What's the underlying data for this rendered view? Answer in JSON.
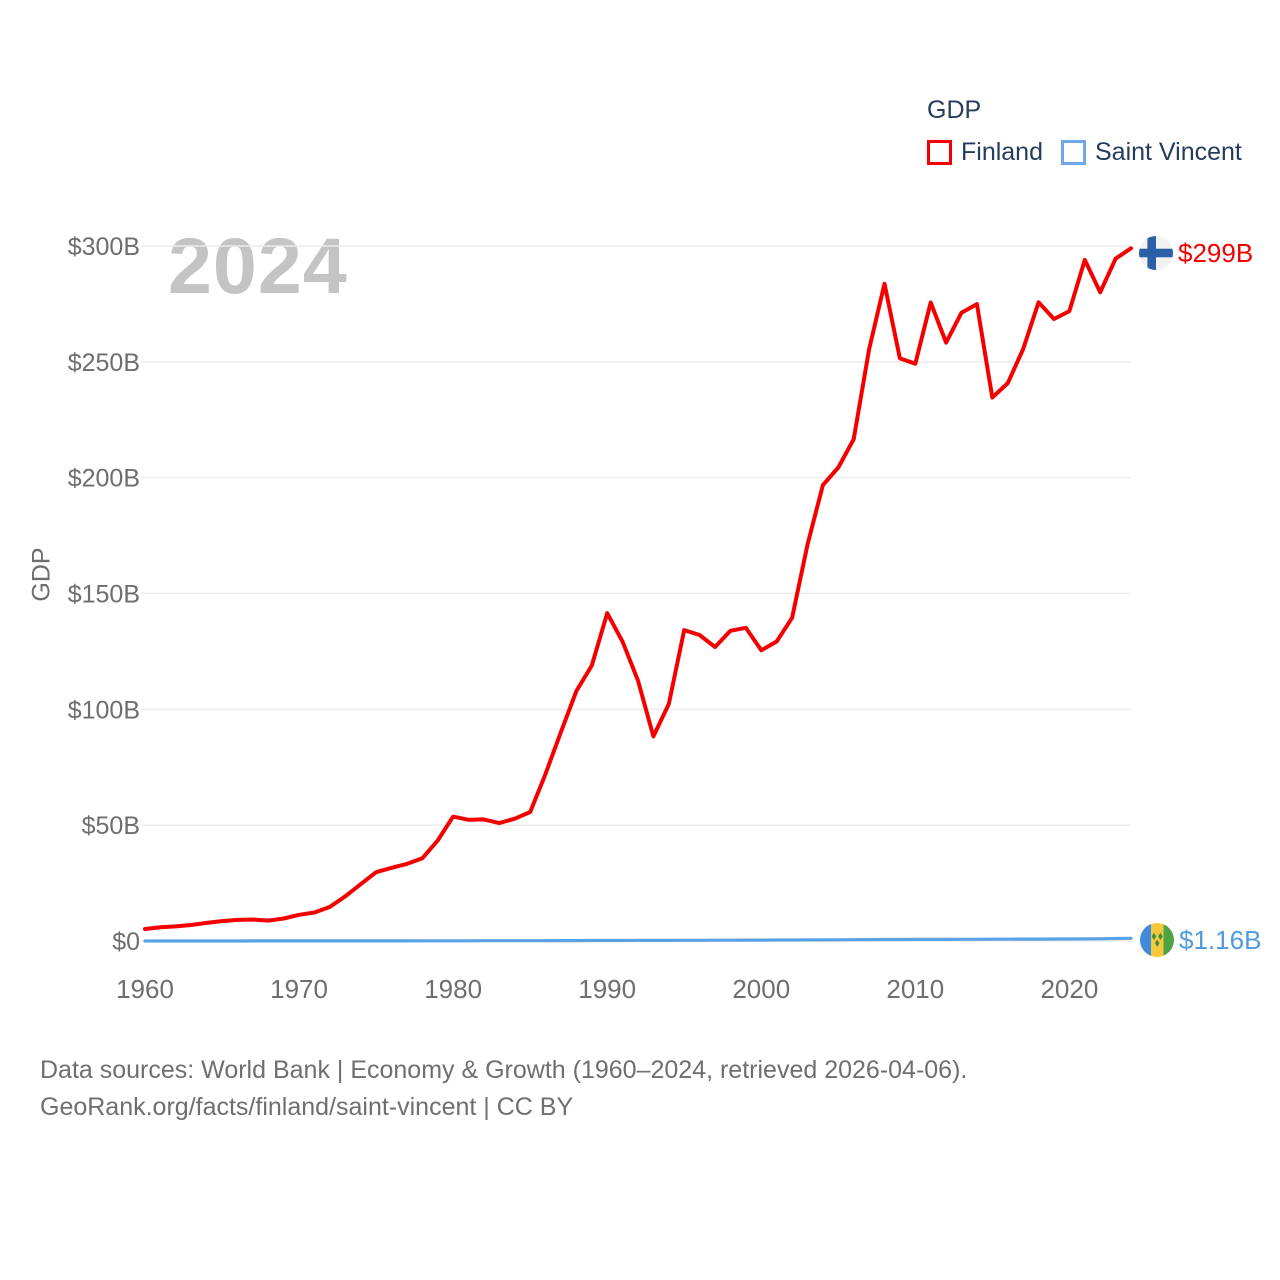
{
  "legend": {
    "title": "GDP",
    "items": [
      {
        "label": "Finland",
        "color": "#f50000"
      },
      {
        "label": "Saint Vincent",
        "color": "#6fa8e8"
      }
    ]
  },
  "watermark": {
    "text": "2024"
  },
  "y_axis": {
    "title": "GDP",
    "tick_labels": [
      "$0",
      "$50B",
      "$100B",
      "$150B",
      "$200B",
      "$250B",
      "$300B"
    ]
  },
  "x_axis": {
    "tick_labels": [
      "1960",
      "1970",
      "1980",
      "1990",
      "2000",
      "2010",
      "2020"
    ]
  },
  "end_labels": {
    "finland": {
      "value_text": "$299B",
      "color": "#f50000",
      "flag": "finland-flag"
    },
    "saint_vincent": {
      "value_text": "$1.16B",
      "color": "#4f9ce0",
      "flag": "saint-vincent-flag"
    }
  },
  "footer": {
    "line1": "Data sources: World Bank | Economy & Growth (1960–2024, retrieved 2026-04-06).",
    "line2": "GeoRank.org/facts/finland/saint-vincent | CC BY"
  },
  "chart_data": {
    "type": "line",
    "title": "GDP",
    "ylabel": "GDP",
    "unit": "USD billions",
    "legend_position": "top-right",
    "grid": "horizontal",
    "xlim": [
      1960,
      2024
    ],
    "ylim": [
      0,
      300
    ],
    "x_tick_values": [
      1960,
      1970,
      1980,
      1990,
      2000,
      2010,
      2020
    ],
    "y_tick_values": [
      0,
      50,
      100,
      150,
      200,
      250,
      300
    ],
    "x": [
      1960,
      1961,
      1962,
      1963,
      1964,
      1965,
      1966,
      1967,
      1968,
      1969,
      1970,
      1971,
      1972,
      1973,
      1974,
      1975,
      1976,
      1977,
      1978,
      1979,
      1980,
      1981,
      1982,
      1983,
      1984,
      1985,
      1986,
      1987,
      1988,
      1989,
      1990,
      1991,
      1992,
      1993,
      1994,
      1995,
      1996,
      1997,
      1998,
      1999,
      2000,
      2001,
      2002,
      2003,
      2004,
      2005,
      2006,
      2007,
      2008,
      2009,
      2010,
      2011,
      2012,
      2013,
      2014,
      2015,
      2016,
      2017,
      2018,
      2019,
      2020,
      2021,
      2022,
      2023,
      2024
    ],
    "series": [
      {
        "name": "Finland",
        "color": "#f50000",
        "values": [
          5.2,
          5.9,
          6.3,
          6.9,
          7.8,
          8.6,
          9.1,
          9.3,
          8.8,
          9.7,
          11.3,
          12.3,
          14.7,
          19.3,
          24.5,
          29.7,
          31.6,
          33.3,
          35.7,
          43.4,
          53.7,
          52.3,
          52.5,
          50.9,
          52.8,
          55.7,
          72.2,
          90.3,
          107.9,
          118.9,
          141.5,
          129.2,
          112.4,
          88.3,
          102.3,
          134.2,
          132.1,
          126.9,
          133.9,
          135.2,
          125.5,
          129.3,
          139.5,
          171.1,
          196.8,
          204.4,
          216.6,
          255.4,
          283.7,
          251.5,
          249.2,
          275.6,
          258.3,
          271.2,
          274.9,
          234.6,
          240.8,
          255.6,
          275.7,
          268.5,
          271.9,
          294.0,
          280.0,
          294.5,
          299.0
        ]
      },
      {
        "name": "Saint Vincent",
        "color": "#5aa2e6",
        "values": [
          0.01,
          0.01,
          0.02,
          0.02,
          0.02,
          0.02,
          0.02,
          0.03,
          0.03,
          0.03,
          0.03,
          0.03,
          0.04,
          0.04,
          0.05,
          0.05,
          0.05,
          0.06,
          0.07,
          0.08,
          0.09,
          0.1,
          0.11,
          0.12,
          0.13,
          0.14,
          0.15,
          0.17,
          0.19,
          0.2,
          0.22,
          0.23,
          0.25,
          0.26,
          0.28,
          0.29,
          0.31,
          0.33,
          0.35,
          0.37,
          0.4,
          0.42,
          0.44,
          0.46,
          0.49,
          0.52,
          0.57,
          0.62,
          0.66,
          0.65,
          0.68,
          0.68,
          0.69,
          0.72,
          0.73,
          0.76,
          0.79,
          0.81,
          0.84,
          0.87,
          0.87,
          0.89,
          0.95,
          1.07,
          1.16
        ]
      }
    ],
    "end_markers": [
      {
        "series": "Finland",
        "label": "$299B"
      },
      {
        "series": "Saint Vincent",
        "label": "$1.16B"
      }
    ]
  }
}
